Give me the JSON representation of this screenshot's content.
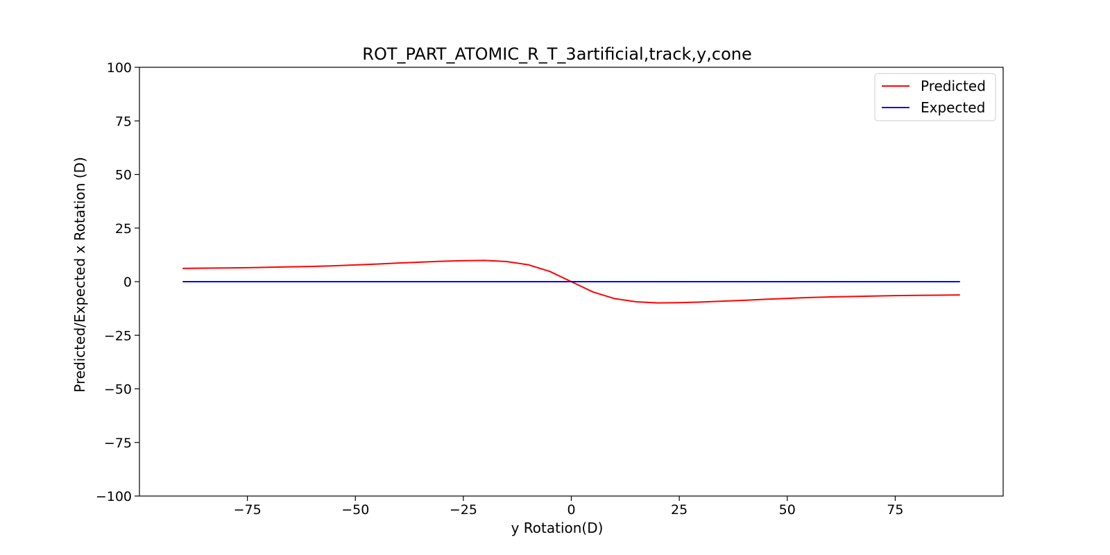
{
  "chart_data": {
    "type": "line",
    "title": "ROT_PART_ATOMIC_R_T_3artificial,track,y,cone",
    "xlabel": "y Rotation(D)",
    "ylabel": "Predicted/Expected x Rotation (D)",
    "xlim": [
      -100,
      100
    ],
    "ylim": [
      -100,
      100
    ],
    "xticks": [
      -75,
      -50,
      -25,
      0,
      25,
      50,
      75
    ],
    "yticks": [
      -100,
      -75,
      -50,
      -25,
      0,
      25,
      50,
      75,
      100
    ],
    "grid": false,
    "legend_position": "top-right",
    "series": [
      {
        "name": "Predicted",
        "color": "#ff0000",
        "x": [
          -90,
          -85,
          -80,
          -75,
          -70,
          -65,
          -60,
          -55,
          -50,
          -45,
          -40,
          -35,
          -30,
          -25,
          -20,
          -15,
          -10,
          -5,
          0,
          5,
          10,
          15,
          20,
          25,
          30,
          35,
          40,
          45,
          50,
          55,
          60,
          65,
          70,
          75,
          80,
          85,
          90
        ],
        "y": [
          6.2,
          6.3,
          6.4,
          6.5,
          6.7,
          6.9,
          7.1,
          7.4,
          7.8,
          8.2,
          8.7,
          9.1,
          9.5,
          9.8,
          9.9,
          9.4,
          7.9,
          4.8,
          0,
          -4.8,
          -7.9,
          -9.4,
          -9.9,
          -9.8,
          -9.5,
          -9.1,
          -8.7,
          -8.2,
          -7.8,
          -7.4,
          -7.1,
          -6.9,
          -6.7,
          -6.5,
          -6.4,
          -6.3,
          -6.2
        ]
      },
      {
        "name": "Expected",
        "color": "#0000ff",
        "x": [
          -90,
          90
        ],
        "y": [
          0,
          0
        ]
      }
    ]
  }
}
